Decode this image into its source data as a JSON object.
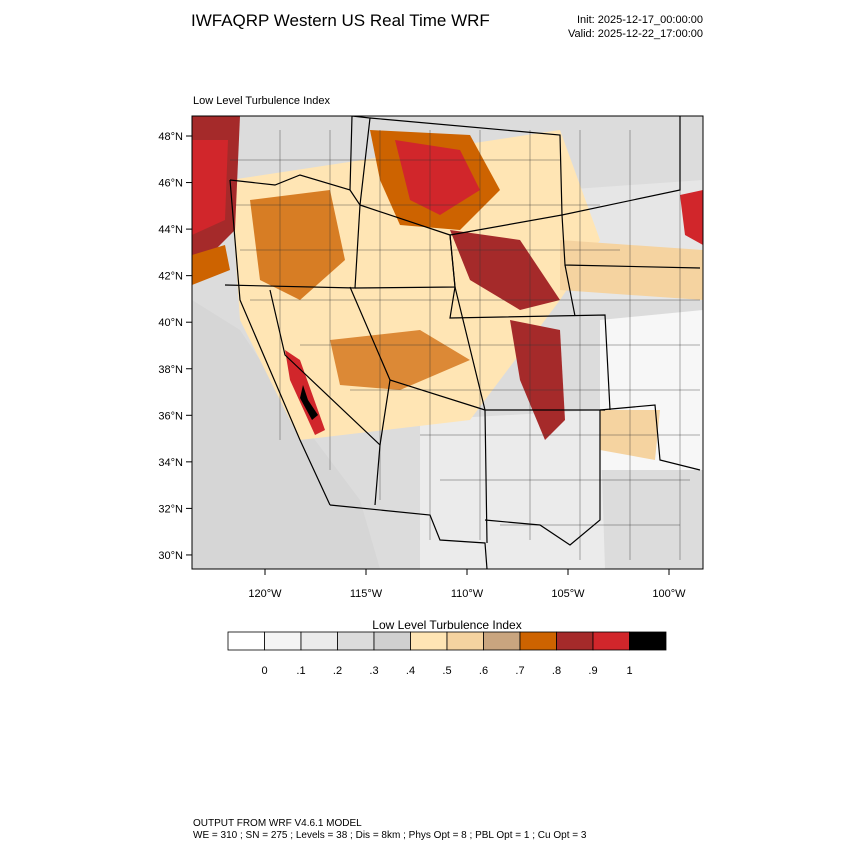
{
  "header": {
    "title": "IWFAQRP Western US Real Time WRF",
    "init": "Init: 2025-12-17_00:00:00",
    "valid": "Valid: 2025-12-22_17:00:00"
  },
  "map": {
    "subtitle": "Low Level Turbulence Index",
    "lat_labels": [
      "48°N",
      "46°N",
      "44°N",
      "42°N",
      "40°N",
      "38°N",
      "36°N",
      "34°N",
      "32°N",
      "30°N"
    ],
    "lon_labels": [
      "120°W",
      "115°W",
      "110°W",
      "105°W",
      "100°W"
    ]
  },
  "colorbar": {
    "title": "Low Level Turbulence Index",
    "colors": [
      "#ffffff",
      "#f5f5f5",
      "#ebebeb",
      "#dcdcdc",
      "#d0d0d0",
      "#ffe5b4",
      "#f5d3a0",
      "#c9a57f",
      "#cd6300",
      "#a52a2a",
      "#d1262b",
      "#000000"
    ],
    "labels": [
      "0",
      ".1",
      ".2",
      ".3",
      ".4",
      ".5",
      ".6",
      ".7",
      ".8",
      ".9",
      "1"
    ]
  },
  "footer": {
    "line1": "OUTPUT FROM WRF V4.6.1 MODEL",
    "line2": "WE = 310 ; SN = 275 ; Levels = 38 ; Dis = 8km ; Phys Opt = 8 ; PBL Opt = 1 ; Cu Opt = 3"
  }
}
